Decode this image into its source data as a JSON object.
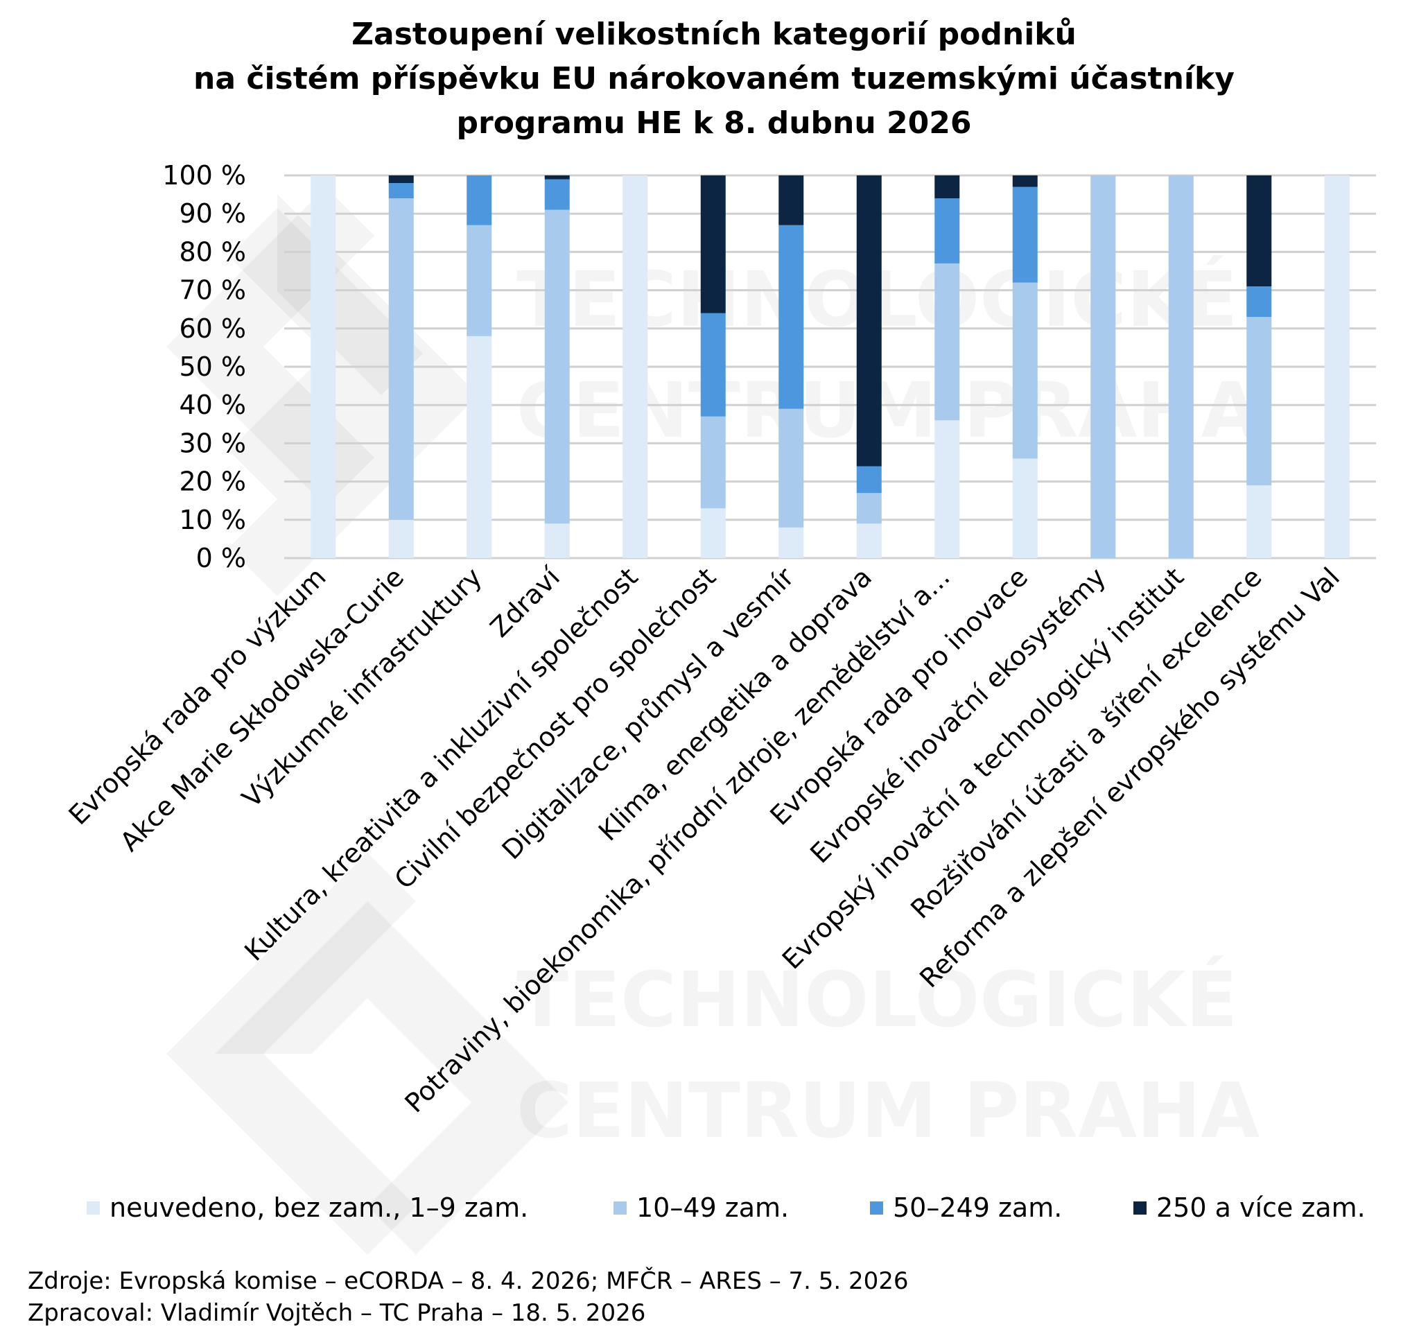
{
  "title_lines": [
    "Zastoupení velikostních kategorií podniků",
    "na čistém příspěvku EU nárokovaném tuzemskými účastníky",
    "programu HE k 8. dubnu 2026"
  ],
  "watermark": {
    "line1": "TECHNOLOGICKÉ",
    "line2": "CENTRUM PRAHA"
  },
  "chart_data": {
    "type": "bar",
    "stacked": true,
    "categories": [
      "Evropská rada pro výzkum",
      "Akce Marie Skłodowska-Curie",
      "Výzkumné infrastruktury",
      "Zdraví",
      "Kultura, kreativita a inkluzivní společnost",
      "Civilní bezpečnost pro společnost",
      "Digitalizace, průmysl a vesmír",
      "Klima, energetika a doprava",
      "Potraviny, bioekonomika, přírodní zdroje, zemědělství a...",
      "Evropská rada pro inovace",
      "Evropské inovační ekosystémy",
      "Evropský inovační a technologický institut",
      "Rozšiřování účasti a šíření excelence",
      "Reforma a zlepšení evropského systému Val"
    ],
    "series": [
      {
        "name": "neuvedeno, bez zam., 1–9 zam.",
        "color": "#DCEBF7",
        "values": [
          100,
          10,
          58,
          9,
          100,
          13,
          8,
          9,
          36,
          26,
          0,
          0,
          19,
          100
        ]
      },
      {
        "name": "10–49 zam.",
        "color": "#A7CAED",
        "values": [
          0,
          84,
          29,
          82,
          0,
          24,
          31,
          8,
          41,
          46,
          100,
          100,
          44,
          0
        ]
      },
      {
        "name": "50–249 zam.",
        "color": "#4C97DD",
        "values": [
          0,
          4,
          13,
          8,
          0,
          27,
          48,
          7,
          17,
          25,
          0,
          0,
          8,
          0
        ]
      },
      {
        "name": "250 a více zam.",
        "color": "#0B2542",
        "values": [
          0,
          2,
          0,
          1,
          0,
          36,
          13,
          76,
          6,
          3,
          0,
          0,
          29,
          0
        ]
      }
    ],
    "y_ticks": [
      "0 %",
      "10 %",
      "20 %",
      "30 %",
      "40 %",
      "50 %",
      "60 %",
      "70 %",
      "80 %",
      "90 %",
      "100 %"
    ],
    "ylim": [
      0,
      100
    ],
    "grid": true,
    "legend_position": "bottom"
  },
  "source_lines": [
    "Zdroje: Evropská komise – eCORDA – 8. 4. 2026; MFČR – ARES – 7. 5. 2026",
    "Zpracoval: Vladimír Vojtěch – TC Praha – 18. 5. 2026"
  ]
}
